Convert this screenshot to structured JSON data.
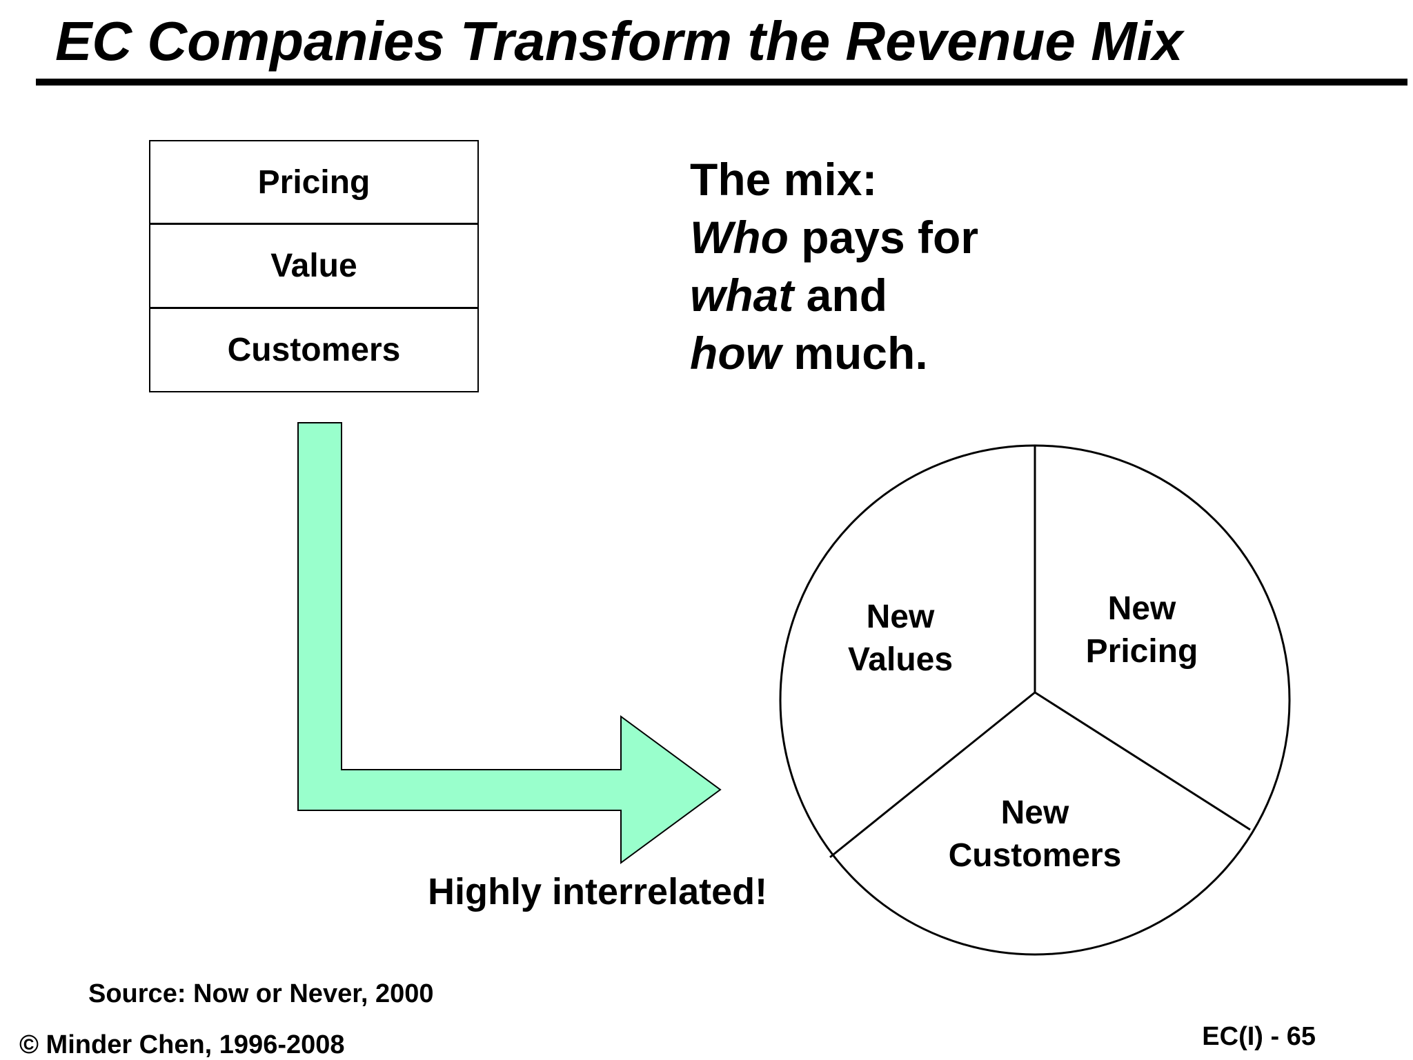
{
  "slide": {
    "title": "EC Companies Transform the Revenue Mix"
  },
  "stack": {
    "items": [
      "Pricing",
      "Value",
      "Customers"
    ]
  },
  "mix_text": {
    "line1": "The mix:",
    "line2_italic": "Who",
    "line2_rest": " pays for",
    "line3_italic": "what",
    "line3_rest": " and",
    "line4_italic": "how",
    "line4_rest": " much."
  },
  "pie": {
    "segments": [
      {
        "line1": "New",
        "line2": "Values"
      },
      {
        "line1": "New",
        "line2": "Pricing"
      },
      {
        "line1": "New",
        "line2": "Customers"
      }
    ]
  },
  "arrow": {
    "fill_color": "#99FFCC"
  },
  "note": "Highly interrelated!",
  "footer": {
    "source": "Source: Now or Never, 2000",
    "copyright": "© Minder Chen, 1996-2008",
    "page": "EC(I) - 65"
  }
}
